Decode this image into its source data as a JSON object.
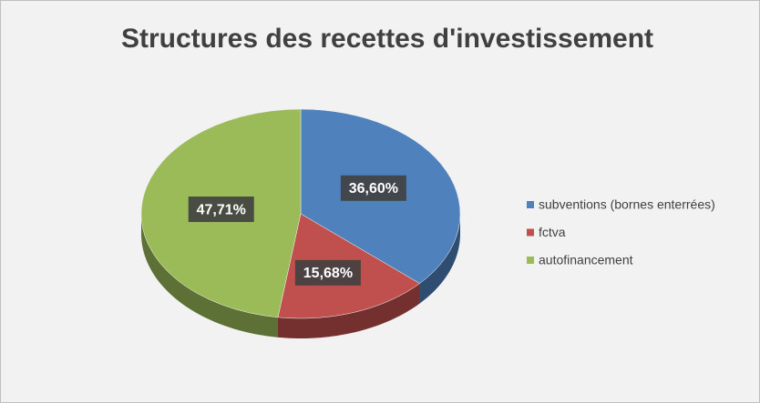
{
  "chart_data": {
    "type": "pie",
    "title": "Structures des recettes  d'investissement",
    "categories": [
      "subventions (bornes enterrées)",
      "fctva",
      "autofinancement"
    ],
    "values": [
      36.6,
      15.68,
      47.71
    ],
    "value_labels": [
      "36,60%",
      "15,68%",
      "47,71%"
    ],
    "colors": [
      "#4f81bd",
      "#c0504d",
      "#9bbb59"
    ],
    "legend": "right"
  }
}
